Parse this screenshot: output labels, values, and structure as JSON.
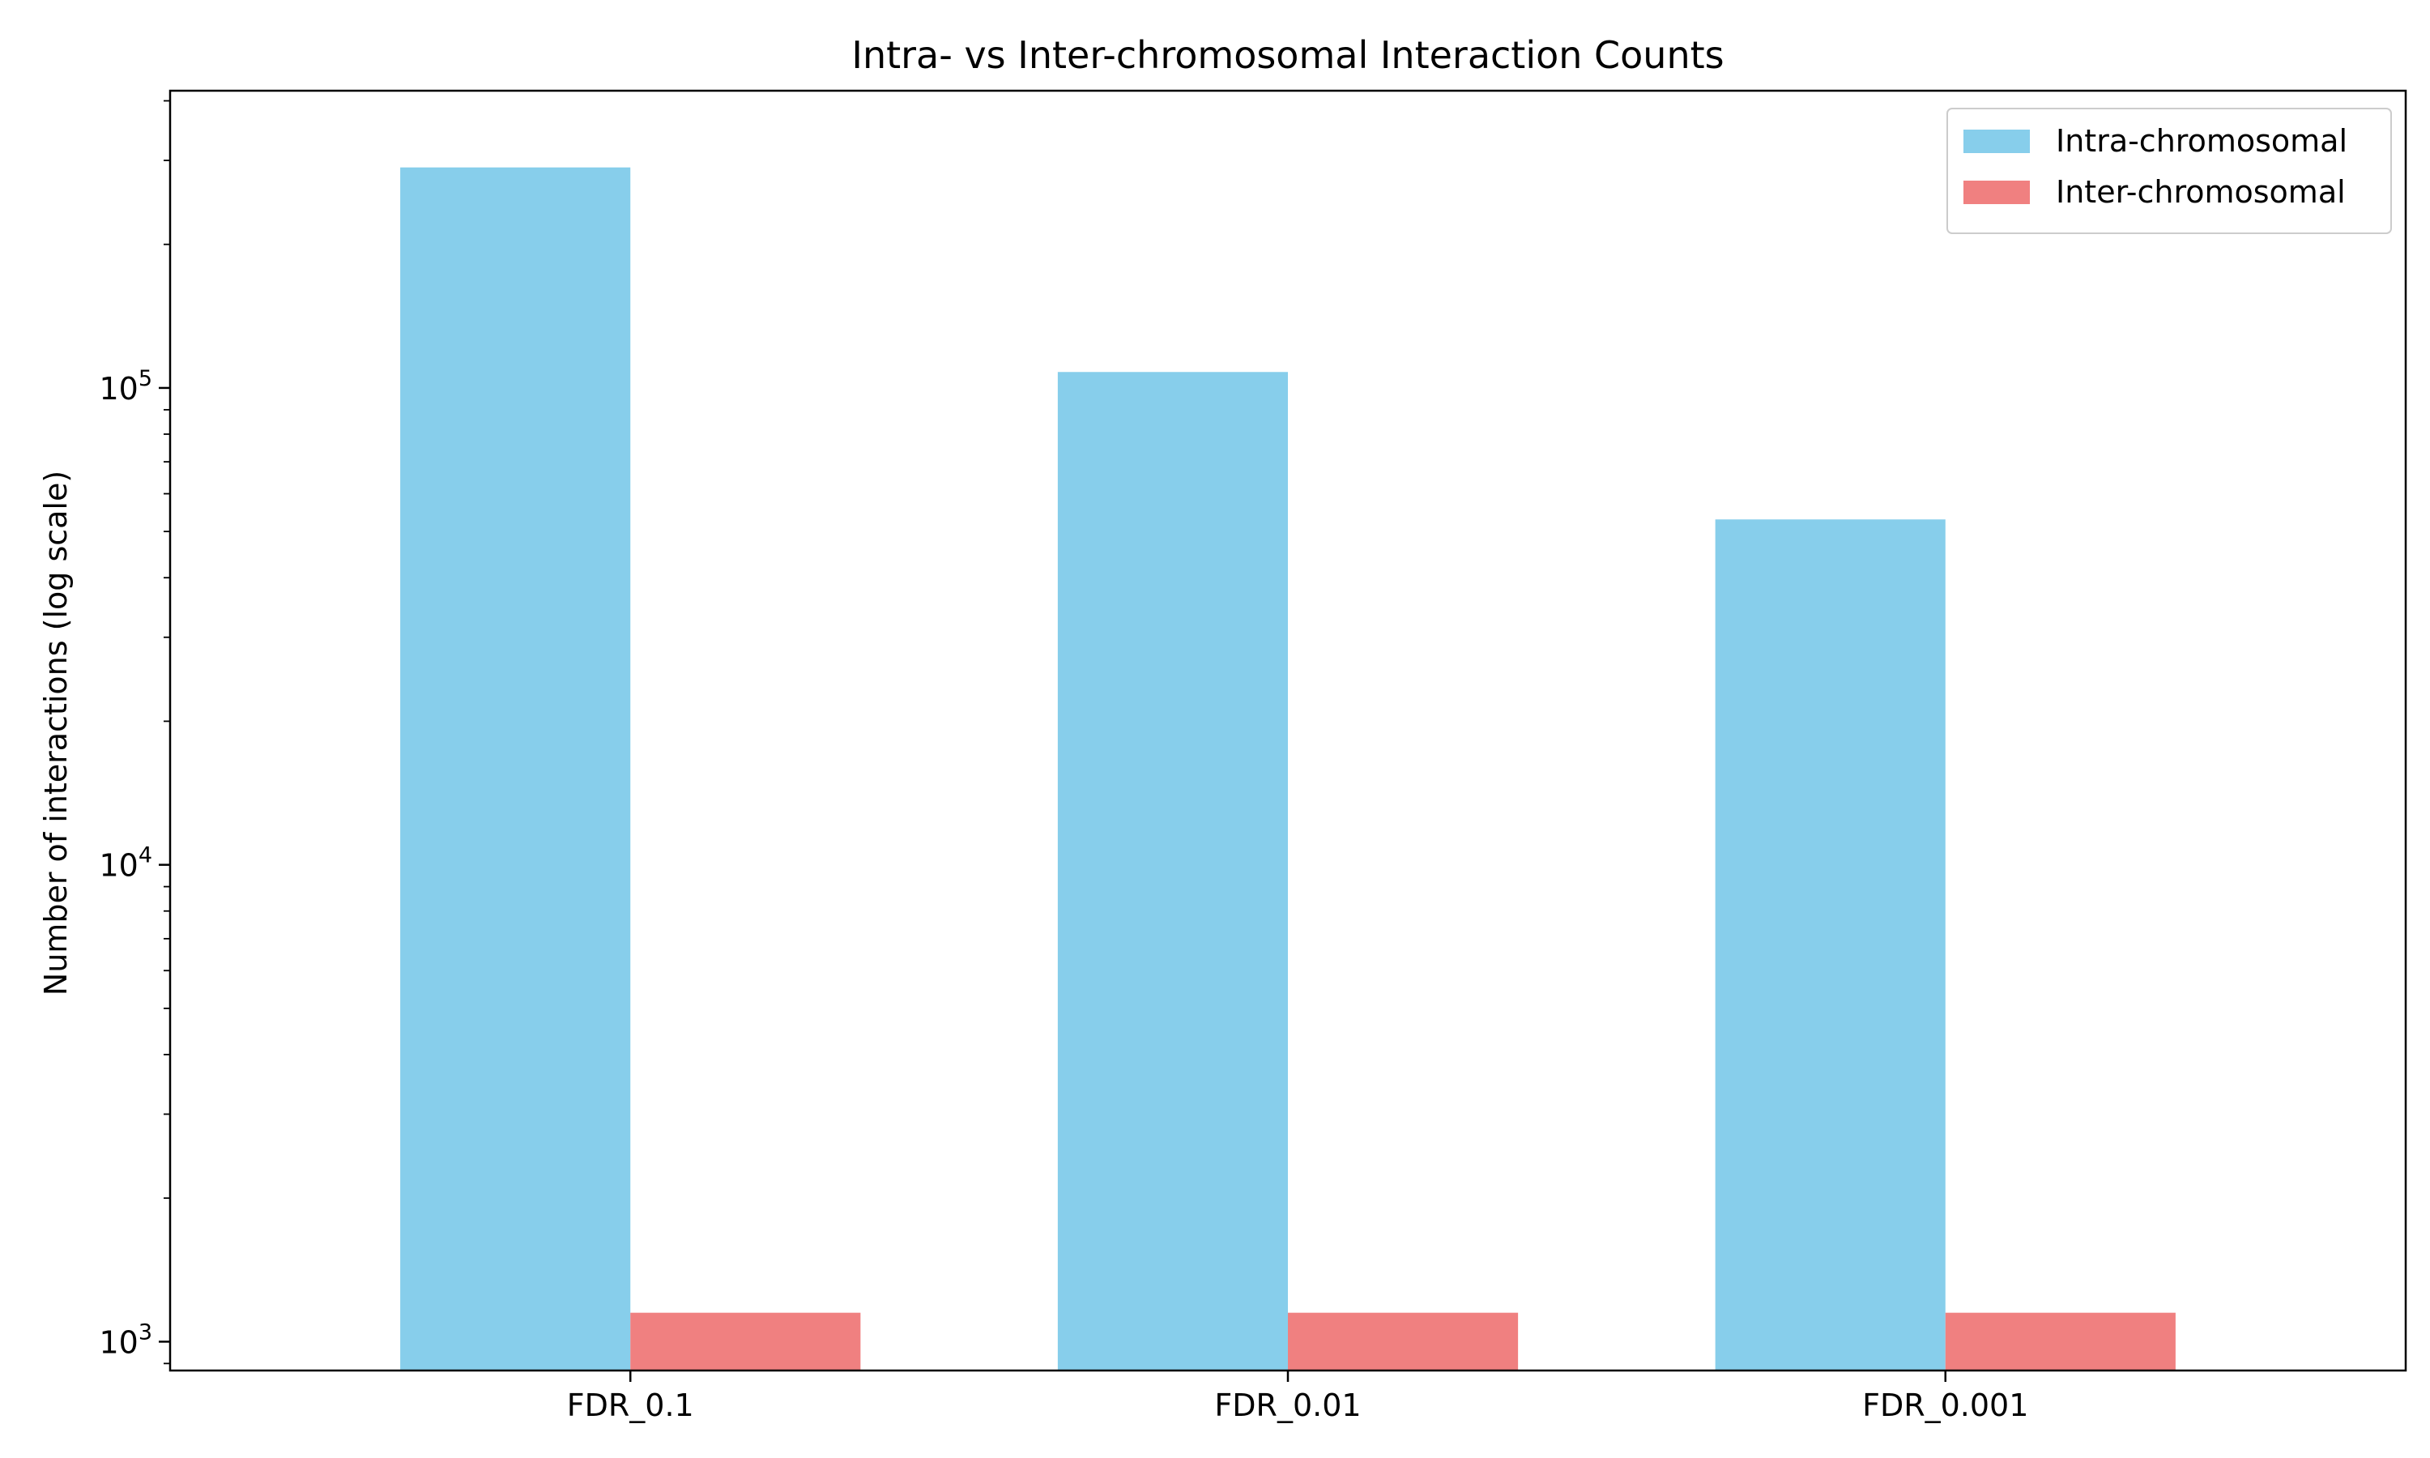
{
  "chart_data": {
    "type": "bar",
    "title": "Intra- vs Inter-chromosomal Interaction Counts",
    "xlabel": "",
    "ylabel": "Number of interactions (log scale)",
    "categories": [
      "FDR_0.1",
      "FDR_0.01",
      "FDR_0.001"
    ],
    "series": [
      {
        "name": "Intra-chromosomal",
        "color": "#87CEEB",
        "values": [
          290000,
          108000,
          53000
        ]
      },
      {
        "name": "Inter-chromosomal",
        "color": "#F08080",
        "values": [
          1150,
          1150,
          1150
        ]
      }
    ],
    "y_scale": "log",
    "ylim": [
      870,
      420000
    ],
    "yticks": [
      {
        "value": 1000,
        "base": "10",
        "exp": "3"
      },
      {
        "value": 10000,
        "base": "10",
        "exp": "4"
      },
      {
        "value": 100000,
        "base": "10",
        "exp": "5"
      }
    ],
    "grid": false,
    "legend_position": "top-right"
  }
}
